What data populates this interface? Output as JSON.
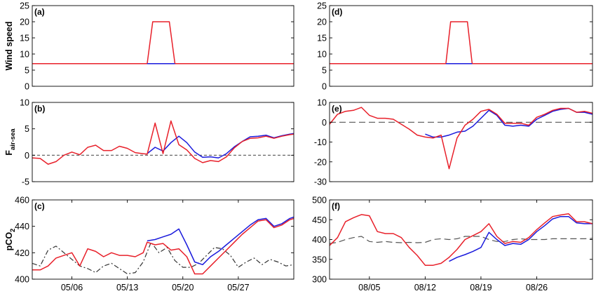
{
  "colors": {
    "red": "#e8202a",
    "blue": "#1a1adc",
    "gray": "#555555",
    "dashblack": "#333333"
  },
  "chart_data": [
    {
      "type": "line",
      "panel": "(a)",
      "ylabel": "Wind speed",
      "ylim": [
        0,
        25
      ],
      "yticks": [
        0,
        5,
        10,
        15,
        20,
        25
      ],
      "xlim": [
        0,
        33
      ],
      "xticks": [],
      "grid": false,
      "series": [
        {
          "color": "red",
          "dash": "solid",
          "x": [
            0,
            14.5,
            15.2,
            17.3,
            18.0,
            33
          ],
          "y": [
            7,
            7,
            20,
            20,
            7,
            7
          ]
        },
        {
          "color": "blue",
          "dash": "solid",
          "x": [
            14.5,
            18.0
          ],
          "y": [
            7,
            7
          ]
        }
      ]
    },
    {
      "type": "line",
      "panel": "(b)",
      "ylabel": "F",
      "ylabel_sub": "air-sea",
      "ylim": [
        -5,
        10
      ],
      "yticks": [
        -5,
        0,
        5,
        10
      ],
      "xlim": [
        0,
        33
      ],
      "xticks": [],
      "grid": false,
      "series": [
        {
          "color": "gray",
          "dash": "short",
          "x": [
            0,
            33
          ],
          "y": [
            0,
            0
          ]
        },
        {
          "color": "blue",
          "dash": "solid",
          "x": [
            14.5,
            15.5,
            16.5,
            17.5,
            18.5,
            19.5,
            20.5,
            21.5,
            22.5,
            23.5,
            24.5,
            25.5,
            26.5,
            27.5,
            28.5,
            29.5,
            30.5,
            31.5,
            32.5,
            33
          ],
          "y": [
            0.3,
            1.5,
            0.8,
            2.4,
            3.6,
            2.4,
            0.6,
            -0.4,
            -0.3,
            -0.5,
            0.3,
            1.6,
            2.6,
            3.5,
            3.6,
            3.8,
            3.3,
            3.7,
            4.0,
            4.1
          ]
        },
        {
          "color": "red",
          "dash": "solid",
          "x": [
            0,
            1,
            2,
            3,
            4,
            5,
            6,
            7,
            8,
            9,
            10,
            11,
            12,
            13,
            14,
            14.5,
            15.5,
            16.5,
            17.5,
            18.5,
            19.5,
            20.5,
            21.5,
            22.5,
            23.5,
            24.5,
            25.5,
            26.5,
            27.5,
            28.5,
            29.5,
            30.5,
            31.5,
            32.5,
            33
          ],
          "y": [
            -0.5,
            -0.6,
            -1.7,
            -1.2,
            0,
            0.6,
            0.1,
            1.5,
            1.9,
            0.9,
            0.9,
            1.7,
            1.3,
            0.5,
            0.3,
            0.2,
            6.1,
            0.3,
            6.5,
            2.0,
            1.0,
            -0.6,
            -1.4,
            -1.0,
            -1.2,
            -0.3,
            1.4,
            2.6,
            3.2,
            3.3,
            3.6,
            3.2,
            3.6,
            3.9,
            4.0
          ]
        }
      ]
    },
    {
      "type": "line",
      "panel": "(c)",
      "ylabel": "pCO",
      "ylabel_sub": "2",
      "ylim": [
        400,
        460
      ],
      "yticks": [
        400,
        420,
        440,
        460
      ],
      "xlim": [
        0,
        33
      ],
      "xticks": [
        5,
        12,
        19,
        26
      ],
      "xtick_labels": [
        "05/06",
        "05/13",
        "05/20",
        "05/27"
      ],
      "grid": false,
      "series": [
        {
          "color": "dashblack",
          "dash": "dashdot",
          "x": [
            0,
            1,
            2,
            3,
            4,
            5,
            6,
            7,
            8,
            9,
            10,
            11,
            12,
            13,
            14,
            15,
            16,
            17,
            18,
            19,
            20,
            21,
            22,
            23,
            24,
            25,
            26,
            27,
            28,
            29,
            30,
            31,
            32,
            33
          ],
          "y": [
            412,
            410,
            422,
            425,
            420,
            415,
            410,
            408,
            405,
            410,
            412,
            408,
            404,
            405,
            413,
            428,
            420,
            424,
            414,
            409,
            409,
            412,
            418,
            424,
            423,
            418,
            409,
            413,
            416,
            411,
            415,
            413,
            410,
            411
          ]
        },
        {
          "color": "blue",
          "dash": "solid",
          "x": [
            14.5,
            15.5,
            16.5,
            17.5,
            18.5,
            19.5,
            20.5,
            21.5,
            22.5,
            23.5,
            24.5,
            25.5,
            26.5,
            27.5,
            28.5,
            29.5,
            30.5,
            31.5,
            32.5,
            33
          ],
          "y": [
            429,
            430,
            432,
            434,
            438,
            426,
            413,
            411,
            417,
            421,
            426,
            431,
            436,
            441,
            445,
            446,
            440,
            442,
            446,
            447
          ]
        },
        {
          "color": "red",
          "dash": "solid",
          "x": [
            0,
            1,
            2,
            3,
            4,
            5,
            6,
            7,
            8,
            9,
            10,
            11,
            12,
            13,
            14,
            14.5,
            15.5,
            16.5,
            17.5,
            18.5,
            19.5,
            20.5,
            21.5,
            22.5,
            23.5,
            24.5,
            25.5,
            26.5,
            27.5,
            28.5,
            29.5,
            30.5,
            31.5,
            32.5,
            33
          ],
          "y": [
            407,
            407,
            410,
            416,
            418,
            420,
            410,
            423,
            421,
            417,
            420,
            418,
            418,
            417,
            420,
            428,
            426,
            427,
            422,
            423,
            417,
            404,
            404,
            410,
            416,
            422,
            428,
            434,
            439,
            444,
            445,
            439,
            441,
            445,
            446
          ]
        }
      ]
    },
    {
      "type": "line",
      "panel": "(d)",
      "ylabel": "",
      "ylim": [
        0,
        25
      ],
      "yticks": [
        0,
        5,
        10,
        15,
        20,
        25
      ],
      "xlim": [
        0,
        33
      ],
      "xticks": [],
      "grid": false,
      "series": [
        {
          "color": "red",
          "dash": "solid",
          "x": [
            0,
            14.6,
            15.2,
            17.3,
            17.9,
            33
          ],
          "y": [
            7,
            7,
            20,
            20,
            7,
            7
          ]
        },
        {
          "color": "blue",
          "dash": "solid",
          "x": [
            14.6,
            17.9
          ],
          "y": [
            7,
            7
          ]
        }
      ]
    },
    {
      "type": "line",
      "panel": "(e)",
      "ylabel": "",
      "ylim": [
        -30,
        10
      ],
      "yticks": [
        -30,
        -20,
        -10,
        0,
        10
      ],
      "xlim": [
        0,
        33
      ],
      "xticks": [],
      "grid": false,
      "series": [
        {
          "color": "gray",
          "dash": "long",
          "x": [
            0,
            33
          ],
          "y": [
            0,
            0
          ]
        },
        {
          "color": "blue",
          "dash": "solid",
          "x": [
            12,
            13,
            14,
            15,
            16,
            17,
            18,
            19,
            20,
            21,
            22,
            23,
            24,
            25,
            26,
            27,
            28,
            29,
            30,
            31,
            32,
            33
          ],
          "y": [
            -6,
            -7.5,
            -7.5,
            -6.5,
            -5,
            -4.5,
            -2,
            2,
            6,
            3.5,
            -1.5,
            -2,
            -1.5,
            -2,
            1.5,
            3.5,
            5.5,
            6.5,
            7,
            5,
            5,
            4
          ]
        },
        {
          "color": "red",
          "dash": "solid",
          "x": [
            0,
            1,
            2,
            3,
            4,
            5,
            6,
            7,
            8,
            9,
            10,
            11,
            12,
            13,
            14,
            15,
            16,
            17,
            18,
            19,
            20,
            21,
            22,
            23,
            24,
            25,
            26,
            27,
            28,
            29,
            30,
            31,
            32,
            33
          ],
          "y": [
            -1,
            4,
            5.5,
            6,
            7.5,
            3.5,
            2,
            2,
            1.5,
            -1,
            -3.5,
            -6.5,
            -7.5,
            -8,
            -6.5,
            -23.5,
            -8,
            -1.5,
            1.5,
            5.5,
            6.5,
            4,
            -0.5,
            -0.5,
            -0.5,
            -1.5,
            2.5,
            4,
            6,
            7,
            7,
            5,
            5.5,
            4.5
          ]
        }
      ]
    },
    {
      "type": "line",
      "panel": "(f)",
      "ylabel": "",
      "ylim": [
        300,
        500
      ],
      "yticks": [
        300,
        350,
        400,
        450,
        500
      ],
      "xlim": [
        0,
        33
      ],
      "xticks": [
        5,
        12,
        19,
        26
      ],
      "xtick_labels": [
        "08/05",
        "08/12",
        "08/19",
        "08/26"
      ],
      "grid": false,
      "series": [
        {
          "color": "gray",
          "dash": "long",
          "x": [
            0,
            1,
            2,
            3,
            4,
            5,
            6,
            7,
            8,
            9,
            10,
            11,
            12,
            13,
            14,
            15,
            16,
            17,
            18,
            19,
            20,
            21,
            22,
            23,
            24,
            25,
            26,
            27,
            28,
            29,
            30,
            31,
            32,
            33
          ],
          "y": [
            390,
            393,
            400,
            405,
            408,
            395,
            393,
            395,
            393,
            392,
            393,
            392,
            393,
            400,
            402,
            400,
            402,
            408,
            408,
            408,
            400,
            395,
            395,
            400,
            402,
            400,
            400,
            400,
            402,
            402,
            402,
            402,
            402,
            403
          ]
        },
        {
          "color": "blue",
          "dash": "solid",
          "x": [
            15,
            16,
            17,
            18,
            19,
            20,
            21,
            22,
            23,
            24,
            25,
            26,
            27,
            28,
            29,
            30,
            31,
            32,
            33
          ],
          "y": [
            345,
            355,
            362,
            370,
            380,
            418,
            400,
            385,
            390,
            388,
            400,
            420,
            435,
            452,
            458,
            458,
            442,
            440,
            440
          ]
        },
        {
          "color": "red",
          "dash": "solid",
          "x": [
            0,
            1,
            2,
            3,
            4,
            5,
            6,
            7,
            8,
            9,
            10,
            11,
            12,
            13,
            14,
            15,
            16,
            17,
            18,
            19,
            20,
            21,
            22,
            23,
            24,
            25,
            26,
            27,
            28,
            29,
            30,
            31,
            32,
            33
          ],
          "y": [
            385,
            405,
            445,
            455,
            463,
            460,
            420,
            415,
            415,
            405,
            380,
            360,
            335,
            335,
            340,
            355,
            375,
            400,
            410,
            420,
            440,
            408,
            390,
            395,
            393,
            405,
            425,
            442,
            458,
            462,
            465,
            445,
            445,
            440
          ]
        }
      ]
    }
  ]
}
